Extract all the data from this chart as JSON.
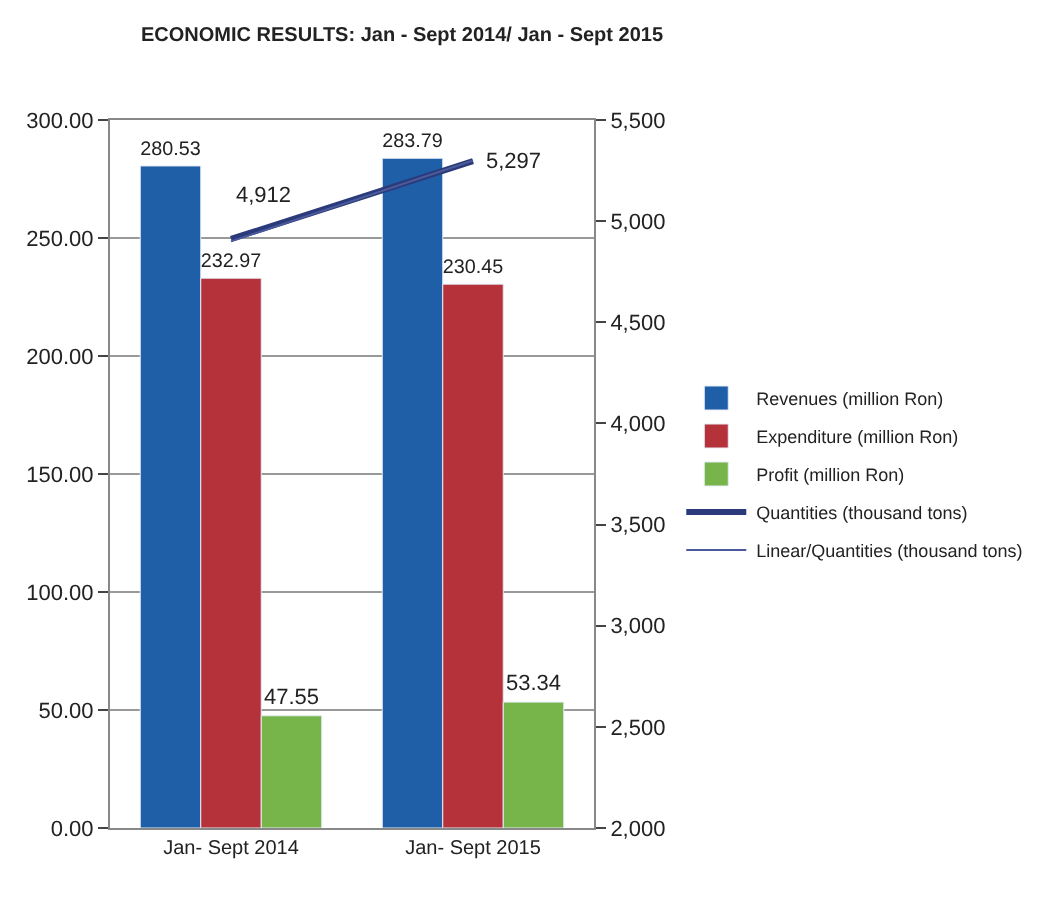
{
  "chart_data": {
    "type": "bar",
    "title": "ECONOMIC RESULTS: Jan - Sept 2014/ Jan - Sept 2015",
    "categories": [
      "Jan- Sept 2014",
      "Jan- Sept 2015"
    ],
    "series": [
      {
        "name": "Revenues (million Ron)",
        "color": "#1f5fa8",
        "values": [
          280.53,
          283.79
        ],
        "value_labels": [
          "280.53",
          "283.79"
        ]
      },
      {
        "name": "Expenditure (million Ron)",
        "color": "#b5323a",
        "values": [
          232.97,
          230.45
        ],
        "value_labels": [
          "232.97",
          "230.45"
        ]
      },
      {
        "name": "Profit (million Ron)",
        "color": "#77b54a",
        "values": [
          47.55,
          53.34
        ],
        "value_labels": [
          "47.55",
          "53.34"
        ]
      },
      {
        "name": "Quantities (thousand tons)",
        "type": "line",
        "axis": "y2",
        "color": "#2b3a7a",
        "values": [
          4912,
          5297
        ],
        "value_labels": [
          "4,912",
          "5,297"
        ]
      },
      {
        "name": "Linear/Quantities (thousand tons)",
        "type": "line",
        "axis": "y2",
        "color": "#4a5a9a",
        "values": [
          4900,
          5300
        ]
      }
    ],
    "ylim": [
      0,
      300
    ],
    "yticks": [
      {
        "value": 0,
        "label": "0.00"
      },
      {
        "value": 50,
        "label": "50.00"
      },
      {
        "value": 100,
        "label": "100.00"
      },
      {
        "value": 150,
        "label": "150.00"
      },
      {
        "value": 200,
        "label": "200.00"
      },
      {
        "value": 250,
        "label": "250.00"
      },
      {
        "value": 300,
        "label": "300.00"
      }
    ],
    "y2lim": [
      2000,
      5500
    ],
    "y2ticks": [
      {
        "value": 2000,
        "label": "2,000"
      },
      {
        "value": 2500,
        "label": "2,500"
      },
      {
        "value": 3000,
        "label": "3,000"
      },
      {
        "value": 3500,
        "label": "3,500"
      },
      {
        "value": 4000,
        "label": "4,000"
      },
      {
        "value": 4500,
        "label": "4,500"
      },
      {
        "value": 5000,
        "label": "5,000"
      },
      {
        "value": 5500,
        "label": "5,500"
      }
    ],
    "grid": "y",
    "legend": "right"
  }
}
